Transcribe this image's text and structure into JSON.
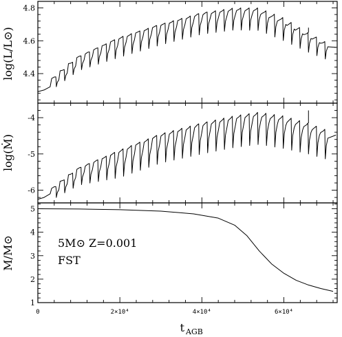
{
  "chart_data": [
    {
      "type": "line",
      "panel": "top",
      "ylabel": "log(L/L⊙)",
      "ylim": [
        4.22,
        4.84
      ],
      "yticks": [
        4.4,
        4.6,
        4.8
      ],
      "ytick_labels": [
        "4.4",
        "4.6",
        "4.8"
      ],
      "xlim": [
        0,
        73000
      ],
      "pulse_model": {
        "t_start": 0,
        "pre_pulse_rise": [
          [
            0,
            4.29
          ],
          [
            1500,
            4.3
          ],
          [
            3000,
            4.32
          ],
          [
            4500,
            4.34
          ]
        ],
        "first_pulse_time": 4500,
        "n_pulses": 33,
        "interpulse_period": 2050,
        "envelope_peak": [
          [
            4500,
            4.38
          ],
          [
            10000,
            4.5
          ],
          [
            20000,
            4.62
          ],
          [
            30000,
            4.7
          ],
          [
            40000,
            4.77
          ],
          [
            48000,
            4.8
          ],
          [
            54000,
            4.8
          ],
          [
            60000,
            4.74
          ],
          [
            66000,
            4.65
          ],
          [
            72000,
            4.57
          ]
        ],
        "dip_depth": [
          [
            4500,
            0.06
          ],
          [
            20000,
            0.12
          ],
          [
            40000,
            0.13
          ],
          [
            60000,
            0.14
          ],
          [
            72000,
            0.1
          ]
        ],
        "spikes": [
          [
            66000,
            4.68
          ]
        ]
      },
      "color": "#000000"
    },
    {
      "type": "line",
      "panel": "middle",
      "ylabel": "log(Ṁ)",
      "ylim": [
        -6.35,
        -3.6
      ],
      "yticks": [
        -6,
        -5,
        -4
      ],
      "ytick_labels": [
        "-6",
        "-5",
        "-4"
      ],
      "xlim": [
        0,
        73000
      ],
      "pulse_model": {
        "pre_pulse_rise": [
          [
            0,
            -6.25
          ],
          [
            1500,
            -6.2
          ],
          [
            3000,
            -6.1
          ],
          [
            4500,
            -6.0
          ]
        ],
        "first_pulse_time": 4500,
        "n_pulses": 33,
        "interpulse_period": 2050,
        "envelope_peak": [
          [
            4500,
            -5.9
          ],
          [
            10000,
            -5.4
          ],
          [
            20000,
            -4.9
          ],
          [
            30000,
            -4.45
          ],
          [
            40000,
            -4.15
          ],
          [
            48000,
            -3.95
          ],
          [
            54000,
            -3.85
          ],
          [
            60000,
            -3.95
          ],
          [
            66000,
            -4.15
          ],
          [
            72000,
            -4.4
          ]
        ],
        "dip_depth": [
          [
            4500,
            0.3
          ],
          [
            20000,
            0.75
          ],
          [
            40000,
            0.85
          ],
          [
            60000,
            0.9
          ],
          [
            72000,
            0.8
          ]
        ],
        "spikes": [
          [
            66000,
            -3.8
          ]
        ]
      },
      "color": "#000000"
    },
    {
      "type": "line",
      "panel": "bottom",
      "xlabel": "t_AGB",
      "ylabel": "M/M⊙",
      "ylim": [
        1,
        5.25
      ],
      "yticks": [
        1,
        2,
        3,
        4,
        5
      ],
      "ytick_labels": [
        "1",
        "2",
        "3",
        "4",
        "5"
      ],
      "xlim": [
        0,
        73000
      ],
      "xticks": [
        0,
        20000,
        40000,
        60000
      ],
      "xtick_labels": [
        "0",
        "2×10⁴",
        "4×10⁴",
        "6×10⁴"
      ],
      "x": [
        0,
        10000,
        20000,
        30000,
        38000,
        44000,
        48000,
        51000,
        54000,
        57000,
        60000,
        63000,
        66000,
        69000,
        72000
      ],
      "y": [
        5.0,
        4.99,
        4.96,
        4.9,
        4.78,
        4.6,
        4.3,
        3.85,
        3.2,
        2.65,
        2.25,
        1.95,
        1.75,
        1.6,
        1.48
      ],
      "color": "#000000"
    }
  ],
  "annotation": {
    "line1": "5M⊙  Z=0.001",
    "line2": "FST"
  },
  "labels": {
    "top_ylabel": "log(L/L⊙)",
    "middle_ylabel": "log(Ṁ)",
    "bottom_ylabel": "M/M⊙",
    "xlabel_main": "t",
    "xlabel_sub": "AGB"
  }
}
